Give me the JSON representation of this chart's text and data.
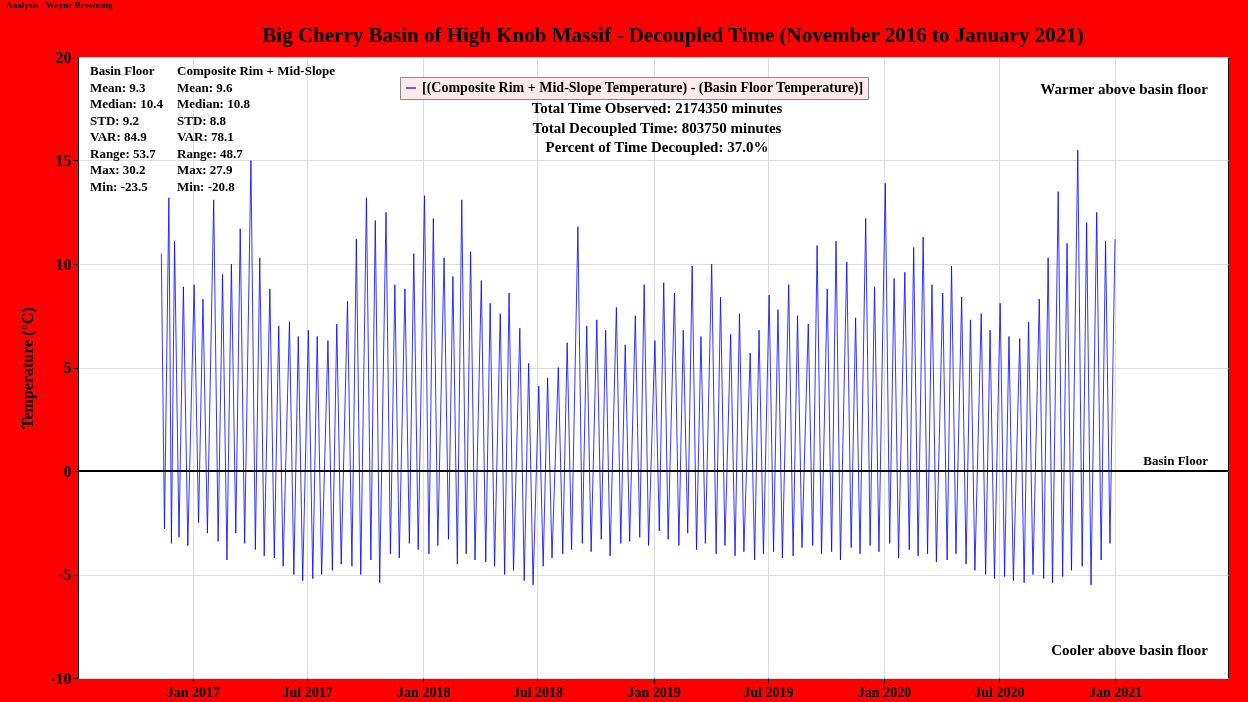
{
  "chart_data": {
    "type": "line",
    "title": "Big Cherry Basin of High Knob Massif - Decoupled Time (November 2016 to January 2021)",
    "ylabel": "Temperature (°C)",
    "annotations": [
      "Analysis - Wayne Browning",
      "Basin Floor",
      "Mean: 9.3",
      "Median: 10.4",
      "STD: 9.2",
      "VAR: 84.9",
      "Range: 53.7",
      "Max: 30.2",
      "Min: -23.5",
      "Composite Rim + Mid-Slope",
      "Mean: 9.6",
      "Median: 10.8",
      "STD: 8.8",
      "VAR: 78.1",
      "Range: 48.7",
      "Max: 27.9",
      "Min: -20.8",
      "Total Time Observed: 2174350 minutes",
      "Total Decoupled Time: 803750 minutes",
      "Percent of Time Decoupled: 37.0%",
      "Warmer above basin floor",
      "Cooler above basin floor"
    ],
    "x": [
      "2016-11-12",
      "2016-11-17",
      "2016-11-24",
      "2016-11-28",
      "2016-12-03",
      "2016-12-10",
      "2016-12-17",
      "2016-12-24",
      "2017-01-03",
      "2017-01-10",
      "2017-01-17",
      "2017-01-24",
      "2017-02-03",
      "2017-02-10",
      "2017-02-17",
      "2017-02-24",
      "2017-03-03",
      "2017-03-10",
      "2017-03-17",
      "2017-03-24",
      "2017-04-03",
      "2017-04-10",
      "2017-04-17",
      "2017-04-24",
      "2017-05-03",
      "2017-05-10",
      "2017-05-17",
      "2017-05-24",
      "2017-06-03",
      "2017-06-10",
      "2017-06-17",
      "2017-06-24",
      "2017-07-03",
      "2017-07-10",
      "2017-07-17",
      "2017-07-24",
      "2017-08-03",
      "2017-08-10",
      "2017-08-17",
      "2017-08-24",
      "2017-09-03",
      "2017-09-10",
      "2017-09-17",
      "2017-09-24",
      "2017-10-03",
      "2017-10-10",
      "2017-10-17",
      "2017-10-24",
      "2017-11-03",
      "2017-11-10",
      "2017-11-17",
      "2017-11-24",
      "2017-12-03",
      "2017-12-10",
      "2017-12-17",
      "2017-12-24",
      "2018-01-03",
      "2018-01-10",
      "2018-01-17",
      "2018-01-24",
      "2018-02-03",
      "2018-02-10",
      "2018-02-17",
      "2018-02-24",
      "2018-03-03",
      "2018-03-10",
      "2018-03-17",
      "2018-03-24",
      "2018-04-03",
      "2018-04-10",
      "2018-04-17",
      "2018-04-24",
      "2018-05-03",
      "2018-05-10",
      "2018-05-17",
      "2018-05-24",
      "2018-06-03",
      "2018-06-10",
      "2018-06-17",
      "2018-06-24",
      "2018-07-03",
      "2018-07-10",
      "2018-07-17",
      "2018-07-24",
      "2018-08-03",
      "2018-08-10",
      "2018-08-17",
      "2018-08-24",
      "2018-09-03",
      "2018-09-10",
      "2018-09-17",
      "2018-09-24",
      "2018-10-03",
      "2018-10-10",
      "2018-10-17",
      "2018-10-24",
      "2018-11-03",
      "2018-11-10",
      "2018-11-17",
      "2018-11-24",
      "2018-12-03",
      "2018-12-10",
      "2018-12-17",
      "2018-12-24",
      "2019-01-03",
      "2019-01-10",
      "2019-01-17",
      "2019-01-24",
      "2019-02-03",
      "2019-02-10",
      "2019-02-17",
      "2019-02-24",
      "2019-03-03",
      "2019-03-10",
      "2019-03-17",
      "2019-03-24",
      "2019-04-03",
      "2019-04-10",
      "2019-04-17",
      "2019-04-24",
      "2019-05-03",
      "2019-05-10",
      "2019-05-17",
      "2019-05-24",
      "2019-06-03",
      "2019-06-10",
      "2019-06-17",
      "2019-06-24",
      "2019-07-03",
      "2019-07-10",
      "2019-07-17",
      "2019-07-24",
      "2019-08-03",
      "2019-08-10",
      "2019-08-17",
      "2019-08-24",
      "2019-09-03",
      "2019-09-10",
      "2019-09-17",
      "2019-09-24",
      "2019-10-03",
      "2019-10-10",
      "2019-10-17",
      "2019-10-24",
      "2019-11-03",
      "2019-11-10",
      "2019-11-17",
      "2019-11-24",
      "2019-12-03",
      "2019-12-10",
      "2019-12-17",
      "2019-12-24",
      "2020-01-03",
      "2020-01-10",
      "2020-01-17",
      "2020-01-24",
      "2020-02-03",
      "2020-02-10",
      "2020-02-17",
      "2020-02-24",
      "2020-03-03",
      "2020-03-10",
      "2020-03-17",
      "2020-03-24",
      "2020-04-03",
      "2020-04-10",
      "2020-04-17",
      "2020-04-24",
      "2020-05-03",
      "2020-05-10",
      "2020-05-17",
      "2020-05-24",
      "2020-06-03",
      "2020-06-10",
      "2020-06-17",
      "2020-06-24",
      "2020-07-03",
      "2020-07-10",
      "2020-07-17",
      "2020-07-24",
      "2020-08-03",
      "2020-08-10",
      "2020-08-17",
      "2020-08-24",
      "2020-09-03",
      "2020-09-10",
      "2020-09-17",
      "2020-09-24",
      "2020-10-03",
      "2020-10-10",
      "2020-10-17",
      "2020-10-24",
      "2020-11-03",
      "2020-11-10",
      "2020-11-17",
      "2020-11-24",
      "2020-12-03",
      "2020-12-10",
      "2020-12-17",
      "2020-12-24",
      "2021-01-01"
    ],
    "series": [
      {
        "name": "[(Composite Rim + Mid-Slope Temperature) - (Basin Floor Temperature)]",
        "color": "#0000ff",
        "values": [
          10.5,
          -2.8,
          13.2,
          -3.5,
          11.1,
          -3.2,
          8.9,
          -3.6,
          9.0,
          -2.5,
          8.3,
          -3.0,
          13.1,
          -3.4,
          9.5,
          -4.3,
          10.0,
          -3.0,
          11.7,
          -3.5,
          15.0,
          -3.8,
          10.3,
          -4.1,
          8.8,
          -4.2,
          7.0,
          -4.6,
          7.2,
          -5.0,
          6.5,
          -5.3,
          6.8,
          -5.2,
          6.5,
          -5.0,
          6.3,
          -4.8,
          7.1,
          -4.5,
          8.2,
          -4.6,
          11.2,
          -5.0,
          13.2,
          -4.3,
          12.1,
          -5.4,
          12.5,
          -4.0,
          9.0,
          -4.2,
          8.8,
          -3.5,
          10.5,
          -3.8,
          13.3,
          -4.0,
          12.2,
          -3.6,
          10.3,
          -3.3,
          9.4,
          -4.5,
          13.1,
          -4.0,
          10.6,
          -4.3,
          9.2,
          -4.4,
          8.1,
          -4.6,
          7.6,
          -5.0,
          8.6,
          -4.8,
          6.9,
          -5.3,
          5.2,
          -5.5,
          4.1,
          -4.6,
          4.5,
          -4.2,
          5.0,
          -4.0,
          6.2,
          -3.8,
          11.8,
          -3.5,
          7.0,
          -3.9,
          7.3,
          -3.3,
          6.8,
          -4.1,
          7.9,
          -3.5,
          6.1,
          -3.4,
          7.5,
          -3.2,
          9.0,
          -3.6,
          6.3,
          -2.9,
          9.1,
          -3.3,
          8.6,
          -3.6,
          6.8,
          -3.0,
          9.9,
          -3.8,
          6.5,
          -3.5,
          10.0,
          -4.0,
          8.4,
          -3.6,
          6.6,
          -4.1,
          7.6,
          -3.9,
          5.7,
          -4.3,
          6.8,
          -4.0,
          8.5,
          -3.9,
          7.8,
          -4.2,
          9.0,
          -4.1,
          7.5,
          -3.7,
          7.1,
          -3.6,
          10.9,
          -4.0,
          8.8,
          -3.9,
          11.1,
          -4.3,
          10.1,
          -3.7,
          7.4,
          -4.0,
          12.2,
          -3.6,
          8.9,
          -3.9,
          13.9,
          -3.5,
          9.3,
          -4.2,
          9.6,
          -3.8,
          10.8,
          -4.1,
          11.3,
          -4.0,
          9.0,
          -4.4,
          8.6,
          -4.3,
          9.9,
          -4.0,
          8.4,
          -4.5,
          7.3,
          -4.8,
          7.6,
          -5.0,
          6.8,
          -5.2,
          8.1,
          -5.1,
          6.5,
          -5.3,
          6.4,
          -5.4,
          7.2,
          -5.0,
          8.3,
          -5.2,
          10.3,
          -5.4,
          13.5,
          -5.1,
          11.0,
          -4.8,
          15.5,
          -4.6,
          12.0,
          -5.5,
          12.5,
          -4.3,
          11.1,
          -3.5,
          11.2
        ]
      }
    ],
    "xlim": [
      "2016-07-03",
      "2021-06-29"
    ],
    "xticks": [
      {
        "value": "2017-01-01",
        "label": "Jan 2017"
      },
      {
        "value": "2017-07-01",
        "label": "Jul 2017"
      },
      {
        "value": "2018-01-01",
        "label": "Jan 2018"
      },
      {
        "value": "2018-07-01",
        "label": "Jul 2018"
      },
      {
        "value": "2019-01-01",
        "label": "Jan 2019"
      },
      {
        "value": "2019-07-01",
        "label": "Jul 2019"
      },
      {
        "value": "2020-01-01",
        "label": "Jan 2020"
      },
      {
        "value": "2020-07-01",
        "label": "Jul 2020"
      },
      {
        "value": "2021-01-01",
        "label": "Jan 2021"
      }
    ],
    "ylim": [
      -10,
      20
    ],
    "yticks": [
      -10,
      -5,
      0,
      5,
      10,
      15,
      20
    ],
    "ref_lines": [
      {
        "axis": "y",
        "value": 0,
        "label": "Basin Floor",
        "color": "#000000"
      }
    ],
    "grid": true,
    "legend": "top",
    "line_style": "solid",
    "marker": "none"
  }
}
